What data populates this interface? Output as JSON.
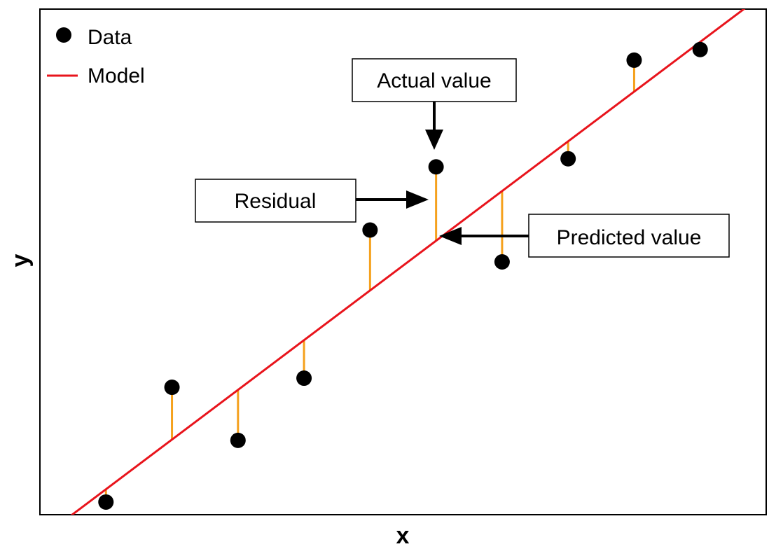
{
  "chart_data": {
    "type": "scatter",
    "title": "",
    "xlabel": "x",
    "ylabel": "y",
    "xlim": [
      0,
      11
    ],
    "ylim": [
      0,
      10
    ],
    "grid": false,
    "legend_position": "top-left",
    "legend": [
      {
        "label": "Data",
        "kind": "marker",
        "color": "#000000"
      },
      {
        "label": "Model",
        "kind": "line",
        "color": "#e8141c"
      }
    ],
    "series": [
      {
        "name": "Data",
        "type": "scatter",
        "color": "#000000",
        "points": [
          {
            "x": 1.0,
            "y": 0.25
          },
          {
            "x": 2.0,
            "y": 2.52
          },
          {
            "x": 3.0,
            "y": 1.47
          },
          {
            "x": 4.0,
            "y": 2.7
          },
          {
            "x": 5.0,
            "y": 5.63
          },
          {
            "x": 6.0,
            "y": 6.88
          },
          {
            "x": 7.0,
            "y": 5.0
          },
          {
            "x": 8.0,
            "y": 7.04
          },
          {
            "x": 9.0,
            "y": 8.99
          },
          {
            "x": 10.0,
            "y": 9.2
          }
        ]
      },
      {
        "name": "Model",
        "type": "line",
        "color": "#e8141c",
        "slope": 0.983,
        "intercept": -0.48
      }
    ],
    "residual_color": "#f5a11d",
    "annotations": [
      {
        "id": "actual",
        "text": "Actual value",
        "target": "data point at x = 6 (actual value)",
        "arrow_direction": "down"
      },
      {
        "id": "residual",
        "text": "Residual",
        "target": "residual segment at x = 6",
        "arrow_direction": "right"
      },
      {
        "id": "predicted",
        "text": "Predicted value",
        "target": "model line at x = 6 (predicted value)",
        "arrow_direction": "left"
      }
    ]
  }
}
